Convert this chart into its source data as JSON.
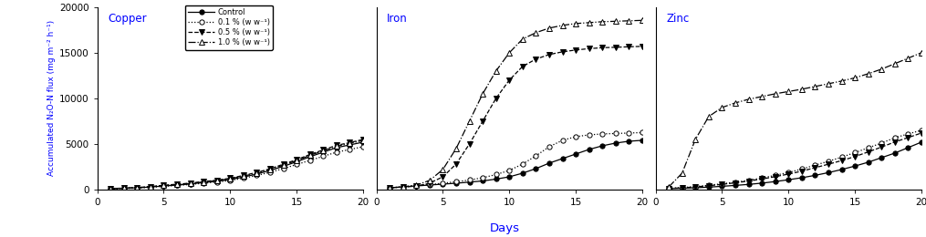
{
  "panels": [
    "Copper",
    "Iron",
    "Zinc"
  ],
  "ylabel": "Accumulated N₂O-N flux (mg m⁻² h⁻¹)",
  "xlabel": "Days",
  "ylim": [
    0,
    20000
  ],
  "xlim": [
    0,
    20
  ],
  "yticks": [
    0,
    5000,
    10000,
    15000,
    20000
  ],
  "xticks": [
    0,
    5,
    10,
    15,
    20
  ],
  "legend_labels": [
    "Control",
    "0.1 % (w w⁻¹)",
    "0.5 % (w w⁻¹)",
    "1.0 % (w w⁻¹)"
  ],
  "line_styles": [
    "-",
    ":",
    "--",
    "-."
  ],
  "markers": [
    "o",
    "o",
    "v",
    "^"
  ],
  "marker_fill": [
    "filled",
    "open",
    "filled",
    "open"
  ],
  "copper": {
    "days": [
      1,
      2,
      3,
      4,
      5,
      6,
      7,
      8,
      9,
      10,
      11,
      12,
      13,
      14,
      15,
      16,
      17,
      18,
      19,
      20
    ],
    "control": [
      100,
      150,
      200,
      280,
      400,
      500,
      620,
      780,
      920,
      1100,
      1380,
      1700,
      2100,
      2550,
      3050,
      3600,
      4100,
      4600,
      4900,
      5200
    ],
    "p01": [
      80,
      120,
      170,
      240,
      360,
      450,
      560,
      700,
      830,
      1000,
      1250,
      1550,
      1900,
      2300,
      2750,
      3200,
      3650,
      4100,
      4400,
      4700
    ],
    "p05": [
      110,
      165,
      230,
      330,
      480,
      590,
      710,
      880,
      1030,
      1250,
      1550,
      1880,
      2280,
      2780,
      3280,
      3850,
      4350,
      4850,
      5150,
      5500
    ],
    "p10": [
      95,
      155,
      215,
      315,
      450,
      560,
      680,
      840,
      980,
      1180,
      1480,
      1800,
      2200,
      2680,
      3180,
      3750,
      4250,
      4750,
      5050,
      5400
    ]
  },
  "iron": {
    "days": [
      1,
      2,
      3,
      4,
      5,
      6,
      7,
      8,
      9,
      10,
      11,
      12,
      13,
      14,
      15,
      16,
      17,
      18,
      19,
      20
    ],
    "control": [
      200,
      300,
      400,
      500,
      600,
      700,
      820,
      950,
      1150,
      1400,
      1800,
      2300,
      2900,
      3400,
      3900,
      4400,
      4800,
      5100,
      5300,
      5400
    ],
    "p01": [
      200,
      300,
      420,
      560,
      700,
      860,
      1050,
      1300,
      1650,
      2100,
      2800,
      3700,
      4700,
      5400,
      5800,
      6000,
      6100,
      6150,
      6200,
      6250
    ],
    "p05": [
      200,
      280,
      380,
      700,
      1400,
      2800,
      5000,
      7500,
      10000,
      12000,
      13500,
      14300,
      14800,
      15100,
      15300,
      15450,
      15550,
      15600,
      15650,
      15700
    ],
    "p10": [
      200,
      300,
      500,
      1000,
      2200,
      4500,
      7500,
      10500,
      13000,
      15000,
      16500,
      17200,
      17700,
      18000,
      18200,
      18300,
      18400,
      18450,
      18500,
      18550
    ]
  },
  "zinc": {
    "days": [
      1,
      2,
      3,
      4,
      5,
      6,
      7,
      8,
      9,
      10,
      11,
      12,
      13,
      14,
      15,
      16,
      17,
      18,
      19,
      20
    ],
    "control": [
      100,
      150,
      200,
      270,
      360,
      460,
      570,
      710,
      880,
      1080,
      1300,
      1560,
      1860,
      2200,
      2580,
      3000,
      3500,
      4000,
      4600,
      5200
    ],
    "p01": [
      150,
      230,
      330,
      480,
      640,
      810,
      1020,
      1270,
      1560,
      1880,
      2250,
      2680,
      3100,
      3560,
      4050,
      4580,
      5100,
      5680,
      6100,
      6500
    ],
    "p05": [
      120,
      200,
      290,
      420,
      580,
      740,
      940,
      1160,
      1420,
      1700,
      2020,
      2400,
      2780,
      3180,
      3620,
      4130,
      4660,
      5220,
      5700,
      6200
    ],
    "p10": [
      300,
      1800,
      5500,
      8000,
      9000,
      9500,
      9900,
      10200,
      10500,
      10750,
      11000,
      11300,
      11600,
      11900,
      12250,
      12700,
      13200,
      13800,
      14400,
      15000
    ]
  }
}
